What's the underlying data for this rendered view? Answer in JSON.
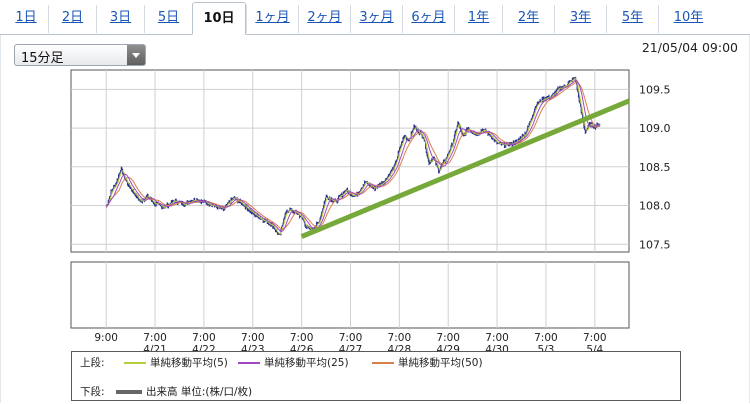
{
  "tabs": [
    {
      "label": "1日",
      "active": false
    },
    {
      "label": "2日",
      "active": false
    },
    {
      "label": "3日",
      "active": false
    },
    {
      "label": "5日",
      "active": false
    },
    {
      "label": "10日",
      "active": true
    },
    {
      "label": "1ヶ月",
      "active": false
    },
    {
      "label": "2ヶ月",
      "active": false
    },
    {
      "label": "3ヶ月",
      "active": false
    },
    {
      "label": "6ヶ月",
      "active": false
    },
    {
      "label": "1年",
      "active": false
    },
    {
      "label": "2年",
      "active": false
    },
    {
      "label": "3年",
      "active": false
    },
    {
      "label": "5年",
      "active": false
    },
    {
      "label": "10年",
      "active": false
    }
  ],
  "interval_select": {
    "value": "15分足"
  },
  "timestamp": "21/05/04 09:00",
  "legend": {
    "upper_label": "上段:",
    "lower_label": "下段:",
    "upper_items": [
      {
        "label": "単純移動平均(5)",
        "color": "#b5cf3a"
      },
      {
        "label": "単純移動平均(25)",
        "color": "#a248c2"
      },
      {
        "label": "単純移動平均(50)",
        "color": "#d9804a"
      }
    ],
    "lower_items": [
      {
        "label": "出来高 単位:(株/口/枚)",
        "color": "#666666"
      }
    ]
  },
  "colors": {
    "candle": "#2b2f8f",
    "sma5": "#b5cf3a",
    "sma25": "#a248c2",
    "sma50": "#d9804a",
    "trendline": "#77a83a",
    "grid": "#cfcfcf"
  },
  "chart_data": {
    "type": "line",
    "grid": true,
    "ylim": [
      107.4,
      109.75
    ],
    "y_ticks": [
      107.5,
      108.0,
      108.5,
      109.0,
      109.5
    ],
    "y_tick_labels": [
      "107.5",
      "108.0",
      "108.5",
      "109.0",
      "109.5"
    ],
    "x_ticks": [
      {
        "t": 0,
        "time": "9:00",
        "date": ""
      },
      {
        "t": 1,
        "time": "7:00",
        "date": "4/21"
      },
      {
        "t": 2,
        "time": "7:00",
        "date": "4/22"
      },
      {
        "t": 3,
        "time": "7:00",
        "date": "4/23"
      },
      {
        "t": 4,
        "time": "7:00",
        "date": "4/26"
      },
      {
        "t": 5,
        "time": "7:00",
        "date": "4/27"
      },
      {
        "t": 6,
        "time": "7:00",
        "date": "4/28"
      },
      {
        "t": 7,
        "time": "7:00",
        "date": "4/29"
      },
      {
        "t": 8,
        "time": "7:00",
        "date": "4/30"
      },
      {
        "t": 9,
        "time": "7:00",
        "date": "5/3"
      },
      {
        "t": 10,
        "time": "7:00",
        "date": "5/4"
      }
    ],
    "x_range": [
      -0.72,
      10.7
    ],
    "price": {
      "x": [
        0,
        0.1,
        0.2,
        0.3,
        0.4,
        0.55,
        0.7,
        0.85,
        1.0,
        1.2,
        1.4,
        1.6,
        1.8,
        2.0,
        2.2,
        2.4,
        2.6,
        2.8,
        3.0,
        3.2,
        3.4,
        3.55,
        3.65,
        3.75,
        3.9,
        4.0,
        4.1,
        4.2,
        4.35,
        4.5,
        4.7,
        4.9,
        5.1,
        5.3,
        5.5,
        5.7,
        5.9,
        6.0,
        6.1,
        6.2,
        6.3,
        6.4,
        6.5,
        6.6,
        6.7,
        6.8,
        6.95,
        7.1,
        7.2,
        7.3,
        7.4,
        7.5,
        7.6,
        7.7,
        7.85,
        8.0,
        8.2,
        8.4,
        8.6,
        8.8,
        8.95,
        9.1,
        9.25,
        9.4,
        9.5,
        9.6,
        9.7,
        9.8,
        9.9,
        10.0,
        10.1
      ],
      "y": [
        107.98,
        108.18,
        108.28,
        108.48,
        108.32,
        108.18,
        108.05,
        108.12,
        108.02,
        107.98,
        108.06,
        108.02,
        108.08,
        108.05,
        108.0,
        107.95,
        108.1,
        108.02,
        107.9,
        107.82,
        107.75,
        107.6,
        107.88,
        107.95,
        107.9,
        107.85,
        107.72,
        107.68,
        107.78,
        108.12,
        108.05,
        108.2,
        108.12,
        108.3,
        108.22,
        108.32,
        108.5,
        108.72,
        108.9,
        108.85,
        109.02,
        108.95,
        108.88,
        108.55,
        108.62,
        108.45,
        108.6,
        108.82,
        109.08,
        108.88,
        109.0,
        108.95,
        108.92,
        108.98,
        108.92,
        108.8,
        108.78,
        108.82,
        108.95,
        109.3,
        109.38,
        109.4,
        109.5,
        109.55,
        109.6,
        109.65,
        109.28,
        108.95,
        109.05,
        109.02,
        109.05
      ]
    },
    "volume": [],
    "annotation_trendline": {
      "x": [
        4.0,
        10.7
      ],
      "y": [
        107.6,
        109.35
      ],
      "color": "#77a83a"
    },
    "series": [
      {
        "name": "単純移動平均(5)",
        "color": "#b5cf3a"
      },
      {
        "name": "単純移動平均(25)",
        "color": "#a248c2"
      },
      {
        "name": "単純移動平均(50)",
        "color": "#d9804a"
      }
    ]
  }
}
